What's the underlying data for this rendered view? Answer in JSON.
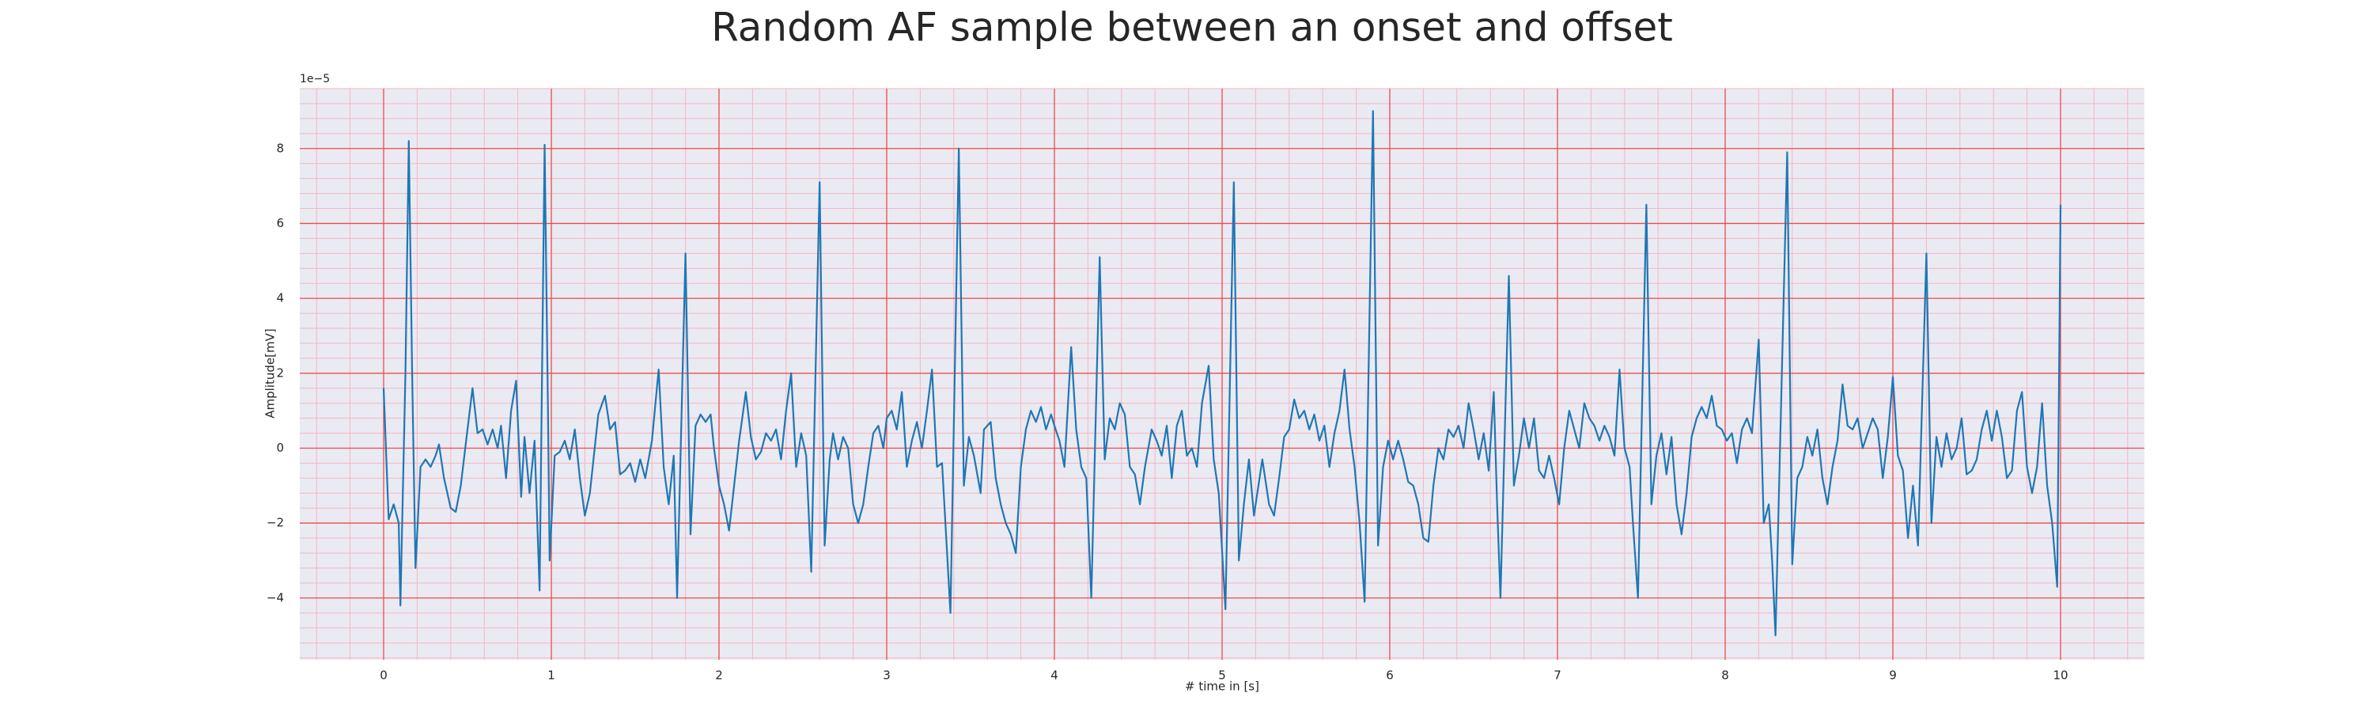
{
  "chart_data": {
    "type": "line",
    "title": "Random AF sample between an onset and offset",
    "xlabel": "# time in [s]",
    "ylabel": "Amplitude[mV]",
    "y_offset_label": "1e−5",
    "color": "#1f77b4",
    "grid": true,
    "minor_grid": true,
    "xlim": [
      -0.5,
      10.5
    ],
    "ylim": [
      -5.65,
      9.6
    ],
    "xticks": [
      0,
      1,
      2,
      3,
      4,
      5,
      6,
      7,
      8,
      9,
      10
    ],
    "yticks": [
      {
        "value": -4,
        "label": "−4"
      },
      {
        "value": -2,
        "label": "−2"
      },
      0,
      2,
      4,
      6,
      8
    ],
    "x": [
      0.0,
      0.03,
      0.06,
      0.09,
      0.1,
      0.13,
      0.15,
      0.17,
      0.19,
      0.22,
      0.25,
      0.28,
      0.31,
      0.33,
      0.36,
      0.4,
      0.43,
      0.46,
      0.5,
      0.53,
      0.56,
      0.59,
      0.62,
      0.65,
      0.68,
      0.7,
      0.73,
      0.76,
      0.79,
      0.82,
      0.84,
      0.87,
      0.9,
      0.93,
      0.96,
      0.98,
      0.99,
      1.02,
      1.05,
      1.08,
      1.11,
      1.14,
      1.17,
      1.2,
      1.23,
      1.28,
      1.32,
      1.35,
      1.38,
      1.41,
      1.44,
      1.47,
      1.5,
      1.53,
      1.56,
      1.6,
      1.64,
      1.67,
      1.7,
      1.73,
      1.75,
      1.8,
      1.83,
      1.86,
      1.89,
      1.92,
      1.95,
      1.97,
      2.0,
      2.03,
      2.06,
      2.09,
      2.12,
      2.16,
      2.19,
      2.22,
      2.25,
      2.28,
      2.31,
      2.34,
      2.37,
      2.4,
      2.43,
      2.46,
      2.49,
      2.52,
      2.55,
      2.6,
      2.63,
      2.66,
      2.68,
      2.71,
      2.74,
      2.77,
      2.8,
      2.83,
      2.86,
      2.89,
      2.92,
      2.95,
      2.98,
      3.0,
      3.03,
      3.06,
      3.09,
      3.12,
      3.15,
      3.18,
      3.21,
      3.24,
      3.27,
      3.3,
      3.33,
      3.35,
      3.38,
      3.43,
      3.46,
      3.49,
      3.52,
      3.56,
      3.58,
      3.62,
      3.65,
      3.68,
      3.71,
      3.74,
      3.77,
      3.8,
      3.83,
      3.86,
      3.89,
      3.92,
      3.95,
      3.98,
      4.0,
      4.03,
      4.06,
      4.1,
      4.13,
      4.16,
      4.19,
      4.22,
      4.27,
      4.3,
      4.33,
      4.36,
      4.39,
      4.42,
      4.45,
      4.48,
      4.51,
      4.54,
      4.58,
      4.61,
      4.64,
      4.67,
      4.7,
      4.73,
      4.76,
      4.79,
      4.82,
      4.85,
      4.88,
      4.92,
      4.95,
      4.98,
      5.02,
      5.07,
      5.1,
      5.13,
      5.16,
      5.19,
      5.21,
      5.24,
      5.28,
      5.31,
      5.34,
      5.37,
      5.4,
      5.43,
      5.46,
      5.49,
      5.52,
      5.55,
      5.58,
      5.61,
      5.64,
      5.67,
      5.7,
      5.73,
      5.76,
      5.79,
      5.82,
      5.85,
      5.9,
      5.93,
      5.96,
      5.99,
      6.02,
      6.05,
      6.08,
      6.11,
      6.14,
      6.17,
      6.2,
      6.23,
      6.26,
      6.29,
      6.32,
      6.35,
      6.38,
      6.41,
      6.44,
      6.47,
      6.5,
      6.53,
      6.56,
      6.59,
      6.62,
      6.64,
      6.66,
      6.71,
      6.74,
      6.77,
      6.8,
      6.83,
      6.86,
      6.89,
      6.92,
      6.95,
      6.98,
      7.01,
      7.04,
      7.07,
      7.1,
      7.13,
      7.16,
      7.19,
      7.22,
      7.25,
      7.28,
      7.31,
      7.34,
      7.37,
      7.4,
      7.43,
      7.45,
      7.48,
      7.53,
      7.56,
      7.59,
      7.62,
      7.65,
      7.68,
      7.71,
      7.74,
      7.77,
      7.8,
      7.83,
      7.86,
      7.89,
      7.92,
      7.95,
      7.98,
      8.01,
      8.04,
      8.07,
      8.1,
      8.13,
      8.16,
      8.2,
      8.23,
      8.26,
      8.28,
      8.3,
      8.37,
      8.4,
      8.43,
      8.46,
      8.49,
      8.52,
      8.55,
      8.58,
      8.61,
      8.64,
      8.67,
      8.7,
      8.73,
      8.76,
      8.79,
      8.82,
      8.85,
      8.88,
      8.91,
      8.94,
      8.97,
      9.0,
      9.03,
      9.06,
      9.09,
      9.12,
      9.15,
      9.2,
      9.23,
      9.26,
      9.29,
      9.32,
      9.35,
      9.38,
      9.41,
      9.44,
      9.47,
      9.5,
      9.53,
      9.56,
      9.59,
      9.62,
      9.65,
      9.68,
      9.71,
      9.74,
      9.77,
      9.8,
      9.83,
      9.86,
      9.89,
      9.92,
      9.95,
      9.98,
      10.0
    ],
    "values": [
      1.6,
      -1.9,
      -1.5,
      -2.0,
      -4.2,
      2.0,
      8.2,
      2.0,
      -3.2,
      -0.5,
      -0.3,
      -0.5,
      -0.2,
      0.1,
      -0.8,
      -1.6,
      -1.7,
      -1.0,
      0.5,
      1.6,
      0.4,
      0.5,
      0.1,
      0.5,
      0.0,
      0.6,
      -0.8,
      1.0,
      1.8,
      -1.3,
      0.3,
      -1.2,
      0.2,
      -3.8,
      8.1,
      1.0,
      -3.0,
      -0.2,
      -0.1,
      0.2,
      -0.3,
      0.5,
      -0.8,
      -1.8,
      -1.2,
      0.9,
      1.4,
      0.5,
      0.7,
      -0.7,
      -0.6,
      -0.4,
      -0.9,
      -0.3,
      -0.8,
      0.2,
      2.1,
      -0.5,
      -1.5,
      -0.2,
      -4.0,
      5.2,
      -2.3,
      0.6,
      0.9,
      0.7,
      0.9,
      0.0,
      -1.0,
      -1.5,
      -2.2,
      -1.0,
      0.2,
      1.5,
      0.3,
      -0.3,
      -0.1,
      0.4,
      0.2,
      0.5,
      -0.3,
      1.0,
      2.0,
      -0.5,
      0.4,
      -0.2,
      -3.3,
      7.1,
      -2.6,
      -0.3,
      0.4,
      -0.3,
      0.3,
      0.0,
      -1.5,
      -2.0,
      -1.5,
      -0.5,
      0.4,
      0.6,
      0.0,
      0.8,
      1.0,
      0.5,
      1.5,
      -0.5,
      0.2,
      0.7,
      0.0,
      1.0,
      2.1,
      -0.5,
      -0.4,
      -2.0,
      -4.4,
      8.0,
      -1.0,
      0.3,
      -0.2,
      -1.2,
      0.5,
      0.7,
      -0.8,
      -1.5,
      -2.0,
      -2.3,
      -2.8,
      -0.5,
      0.5,
      1.0,
      0.7,
      1.1,
      0.5,
      0.9,
      0.6,
      0.2,
      -0.5,
      2.7,
      0.5,
      -0.5,
      -0.8,
      -4.0,
      5.1,
      -0.3,
      0.8,
      0.5,
      1.2,
      0.9,
      -0.5,
      -0.7,
      -1.5,
      -0.5,
      0.5,
      0.2,
      -0.2,
      0.6,
      -0.8,
      0.6,
      1.0,
      -0.2,
      0.0,
      -0.5,
      1.2,
      2.2,
      -0.3,
      -1.2,
      -4.3,
      7.1,
      -3.0,
      -1.5,
      -0.3,
      -1.8,
      -1.2,
      -0.3,
      -1.5,
      -1.8,
      -0.8,
      0.3,
      0.5,
      1.3,
      0.8,
      1.0,
      0.5,
      0.9,
      0.2,
      0.6,
      -0.5,
      0.4,
      1.0,
      2.1,
      0.5,
      -0.5,
      -2.0,
      -4.1,
      9.0,
      -2.6,
      -0.5,
      0.2,
      -0.3,
      0.2,
      -0.3,
      -0.9,
      -1.0,
      -1.5,
      -2.4,
      -2.5,
      -1.0,
      0.0,
      -0.3,
      0.5,
      0.3,
      0.6,
      0.0,
      1.2,
      0.5,
      -0.3,
      0.4,
      -0.6,
      1.5,
      -1.5,
      -4.0,
      4.6,
      -1.0,
      -0.2,
      0.8,
      0.0,
      0.8,
      -0.6,
      -0.8,
      -0.2,
      -0.8,
      -1.5,
      0.0,
      1.0,
      0.5,
      0.0,
      1.2,
      0.8,
      0.6,
      0.2,
      0.6,
      0.3,
      -0.2,
      2.1,
      0.0,
      -0.5,
      -2.0,
      -4.0,
      6.5,
      -1.5,
      -0.2,
      0.4,
      -0.7,
      0.3,
      -1.5,
      -2.3,
      -1.2,
      0.3,
      0.8,
      1.1,
      0.8,
      1.4,
      0.6,
      0.5,
      0.2,
      0.4,
      -0.4,
      0.5,
      0.8,
      0.4,
      2.9,
      -2.0,
      -1.5,
      -3.0,
      -5.0,
      7.9,
      -3.1,
      -0.8,
      -0.5,
      0.3,
      -0.2,
      0.5,
      -0.8,
      -1.5,
      -0.5,
      0.2,
      1.7,
      0.6,
      0.5,
      0.8,
      0.0,
      0.4,
      0.8,
      0.5,
      -0.8,
      0.3,
      1.9,
      -0.2,
      -0.6,
      -2.4,
      -1.0,
      -2.6,
      5.2,
      -2.0,
      0.3,
      -0.5,
      0.4,
      -0.3,
      0.0,
      0.8,
      -0.7,
      -0.6,
      -0.3,
      0.5,
      1.0,
      0.2,
      1.0,
      0.3,
      -0.8,
      -0.6,
      1.0,
      1.5,
      -0.5,
      -1.2,
      -0.5,
      1.2,
      -1.0,
      -2.0,
      -3.7,
      6.5
    ]
  }
}
